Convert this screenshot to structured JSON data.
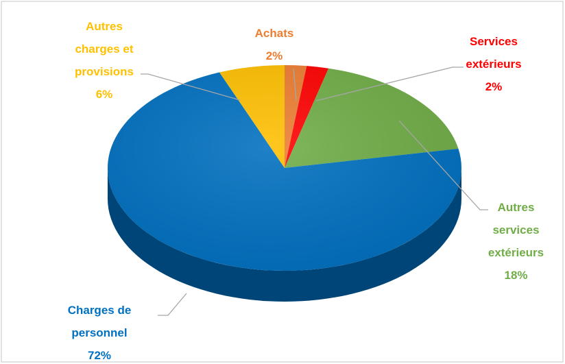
{
  "chart_data": {
    "type": "pie",
    "categories": [
      "Achats",
      "Services extérieurs",
      "Autres services extérieurs",
      "Charges de personnel",
      "Autres charges et provisions"
    ],
    "values": [
      2,
      2,
      18,
      72,
      6
    ],
    "value_labels": [
      "2%",
      "2%",
      "18%",
      "72%",
      "6%"
    ],
    "colors": [
      "#ed7d31",
      "#ff0000",
      "#70ad47",
      "#0070c0",
      "#ffc000"
    ]
  }
}
